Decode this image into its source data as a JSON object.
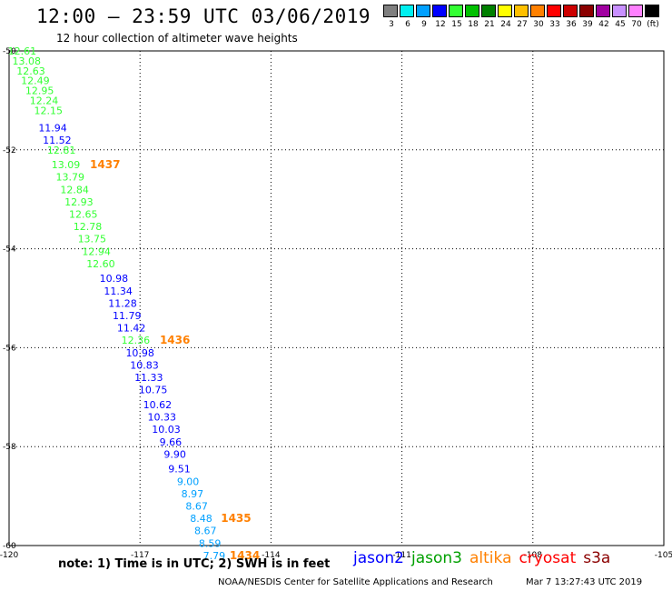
{
  "title": "12:00 – 23:59 UTC 03/06/2019",
  "subtitle": "12 hour collection of altimeter wave heights",
  "legend": {
    "labels": [
      "3",
      "6",
      "9",
      "12",
      "15",
      "18",
      "21",
      "24",
      "27",
      "30",
      "33",
      "36",
      "39",
      "42",
      "45",
      "70",
      "(ft)"
    ],
    "colors": [
      "#7f7f7f",
      "#00f0f0",
      "#00a0ff",
      "#0000ff",
      "#33ff33",
      "#00c000",
      "#008000",
      "#ffff00",
      "#ffc000",
      "#ff8000",
      "#ff0000",
      "#cc0000",
      "#8b0000",
      "#a000a0",
      "#c890ff",
      "#ff80ff",
      "#000000"
    ]
  },
  "axes": {
    "lon_labels": [
      "-120",
      "-117",
      "-114",
      "-111",
      "-108",
      "-105"
    ],
    "lat_labels": [
      "-50",
      "-52",
      "-54",
      "-56",
      "-58",
      "-60"
    ]
  },
  "chart_data": {
    "type": "scatter",
    "points": [
      {
        "lat": -50.0,
        "lon": -119.7,
        "label": "12.61",
        "color": "#33ff33"
      },
      {
        "lat": -50.2,
        "lon": -119.6,
        "label": "13.08",
        "color": "#33ff33"
      },
      {
        "lat": -50.4,
        "lon": -119.5,
        "label": "12.63",
        "color": "#33ff33"
      },
      {
        "lat": -50.6,
        "lon": -119.4,
        "label": "12.49",
        "color": "#33ff33"
      },
      {
        "lat": -50.8,
        "lon": -119.3,
        "label": "12.95",
        "color": "#33ff33"
      },
      {
        "lat": -51.0,
        "lon": -119.2,
        "label": "12.24",
        "color": "#33ff33"
      },
      {
        "lat": -51.2,
        "lon": -119.1,
        "label": "12.15",
        "color": "#33ff33"
      },
      {
        "lat": -51.55,
        "lon": -119.0,
        "label": "11.94",
        "color": "#0000ff"
      },
      {
        "lat": -51.8,
        "lon": -118.9,
        "label": "11.52",
        "color": "#0000ff"
      },
      {
        "lat": -52.0,
        "lon": -118.8,
        "label": "12.81",
        "color": "#33ff33"
      },
      {
        "lat": -52.3,
        "lon": -118.7,
        "label": "13.09",
        "color": "#33ff33"
      },
      {
        "lat": -52.55,
        "lon": -118.6,
        "label": "13.79",
        "color": "#33ff33"
      },
      {
        "lat": -52.8,
        "lon": -118.5,
        "label": "12.84",
        "color": "#33ff33"
      },
      {
        "lat": -53.05,
        "lon": -118.4,
        "label": "12.93",
        "color": "#33ff33"
      },
      {
        "lat": -53.3,
        "lon": -118.3,
        "label": "12.65",
        "color": "#33ff33"
      },
      {
        "lat": -53.55,
        "lon": -118.2,
        "label": "12.78",
        "color": "#33ff33"
      },
      {
        "lat": -53.8,
        "lon": -118.1,
        "label": "13.75",
        "color": "#33ff33"
      },
      {
        "lat": -54.05,
        "lon": -118.0,
        "label": "12.94",
        "color": "#33ff33"
      },
      {
        "lat": -54.3,
        "lon": -117.9,
        "label": "12.60",
        "color": "#33ff33"
      },
      {
        "lat": -54.6,
        "lon": -117.6,
        "label": "10.98",
        "color": "#0000ff"
      },
      {
        "lat": -54.85,
        "lon": -117.5,
        "label": "11.34",
        "color": "#0000ff"
      },
      {
        "lat": -55.1,
        "lon": -117.4,
        "label": "11.28",
        "color": "#0000ff"
      },
      {
        "lat": -55.35,
        "lon": -117.3,
        "label": "11.79",
        "color": "#0000ff"
      },
      {
        "lat": -55.6,
        "lon": -117.2,
        "label": "11.42",
        "color": "#0000ff"
      },
      {
        "lat": -55.85,
        "lon": -117.1,
        "label": "12.36",
        "color": "#33ff33"
      },
      {
        "lat": -56.1,
        "lon": -117.0,
        "label": "10.98",
        "color": "#0000ff"
      },
      {
        "lat": -56.35,
        "lon": -116.9,
        "label": "10.83",
        "color": "#0000ff"
      },
      {
        "lat": -56.6,
        "lon": -116.8,
        "label": "11.33",
        "color": "#0000ff"
      },
      {
        "lat": -56.85,
        "lon": -116.7,
        "label": "10.75",
        "color": "#0000ff"
      },
      {
        "lat": -57.15,
        "lon": -116.6,
        "label": "10.62",
        "color": "#0000ff"
      },
      {
        "lat": -57.4,
        "lon": -116.5,
        "label": "10.33",
        "color": "#0000ff"
      },
      {
        "lat": -57.65,
        "lon": -116.4,
        "label": "10.03",
        "color": "#0000ff"
      },
      {
        "lat": -57.9,
        "lon": -116.3,
        "label": "9.66",
        "color": "#0000ff"
      },
      {
        "lat": -58.15,
        "lon": -116.2,
        "label": "9.90",
        "color": "#0000ff"
      },
      {
        "lat": -58.45,
        "lon": -116.1,
        "label": "9.51",
        "color": "#0000ff"
      },
      {
        "lat": -58.7,
        "lon": -115.9,
        "label": "9.00",
        "color": "#00a0ff"
      },
      {
        "lat": -58.95,
        "lon": -115.8,
        "label": "8.97",
        "color": "#00a0ff"
      },
      {
        "lat": -59.2,
        "lon": -115.7,
        "label": "8.67",
        "color": "#00a0ff"
      },
      {
        "lat": -59.45,
        "lon": -115.6,
        "label": "8.48",
        "color": "#00a0ff"
      },
      {
        "lat": -59.7,
        "lon": -115.5,
        "label": "8.67",
        "color": "#00a0ff"
      },
      {
        "lat": -59.95,
        "lon": -115.4,
        "label": "8.59",
        "color": "#00a0ff"
      },
      {
        "lat": -60.2,
        "lon": -115.3,
        "label": "7.79",
        "color": "#00a0ff"
      }
    ],
    "time_labels": [
      {
        "lat": -52.3,
        "lon": -117.8,
        "label": "1437"
      },
      {
        "lat": -55.85,
        "lon": -116.2,
        "label": "1436"
      },
      {
        "lat": -59.45,
        "lon": -114.8,
        "label": "1435"
      },
      {
        "lat": -60.2,
        "lon": -114.6,
        "label": "1434"
      }
    ],
    "time_label_color": "#ff8000"
  },
  "note": "note:  1) Time is in UTC;  2) SWH is in feet",
  "satellites": [
    {
      "name": "jason2",
      "color": "#0000ff"
    },
    {
      "name": "jason3",
      "color": "#00a000"
    },
    {
      "name": "altika",
      "color": "#ff8000"
    },
    {
      "name": "cryosat",
      "color": "#ff0000"
    },
    {
      "name": "s3a",
      "color": "#8b0000"
    }
  ],
  "footer": {
    "credit": "NOAA/NESDIS Center for Satellite Applications and Research",
    "timestamp": "Mar  7 13:27:43 UTC 2019"
  }
}
